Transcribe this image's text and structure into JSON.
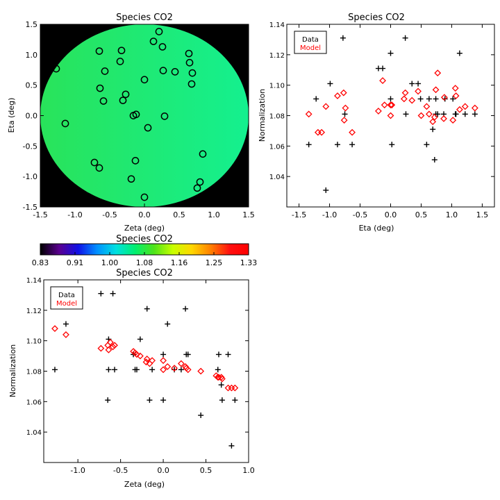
{
  "chart_data": [
    {
      "id": "map",
      "type": "heatmap",
      "title": "Species CO2",
      "xlabel": "Zeta (deg)",
      "ylabel": "Eta (deg)",
      "xlim": [
        -1.5,
        1.5
      ],
      "ylim": [
        -1.5,
        1.5
      ],
      "xticks": [
        -1.5,
        -1.0,
        -0.5,
        0.0,
        0.5,
        1.0,
        1.5
      ],
      "yticks": [
        -1.5,
        -1.0,
        -0.5,
        0.0,
        0.5,
        1.0,
        1.5
      ],
      "background_color": "#000000",
      "disk_color_left": "#29e35a",
      "disk_color_right": "#14f08f",
      "marker": "open circle",
      "points": [
        {
          "zeta": -1.27,
          "eta": 0.77
        },
        {
          "zeta": -1.14,
          "eta": -0.13
        },
        {
          "zeta": -0.65,
          "eta": 1.06
        },
        {
          "zeta": -0.57,
          "eta": 0.73
        },
        {
          "zeta": -0.64,
          "eta": 0.45
        },
        {
          "zeta": -0.59,
          "eta": 0.24
        },
        {
          "zeta": -0.33,
          "eta": 1.07
        },
        {
          "zeta": -0.35,
          "eta": 0.89
        },
        {
          "zeta": -0.27,
          "eta": 0.35
        },
        {
          "zeta": -0.31,
          "eta": 0.25
        },
        {
          "zeta": -0.16,
          "eta": 0.0
        },
        {
          "zeta": -0.12,
          "eta": 0.02
        },
        {
          "zeta": -0.72,
          "eta": -0.77
        },
        {
          "zeta": -0.65,
          "eta": -0.86
        },
        {
          "zeta": -0.13,
          "eta": -0.74
        },
        {
          "zeta": -0.19,
          "eta": -1.04
        },
        {
          "zeta": 0.0,
          "eta": -1.34
        },
        {
          "zeta": 0.0,
          "eta": 0.59
        },
        {
          "zeta": 0.05,
          "eta": -0.2
        },
        {
          "zeta": 0.13,
          "eta": 1.22
        },
        {
          "zeta": 0.21,
          "eta": 1.38
        },
        {
          "zeta": 0.26,
          "eta": 1.13
        },
        {
          "zeta": 0.27,
          "eta": 0.74
        },
        {
          "zeta": 0.29,
          "eta": -0.01
        },
        {
          "zeta": 0.44,
          "eta": 0.72
        },
        {
          "zeta": 0.64,
          "eta": 1.02
        },
        {
          "zeta": 0.65,
          "eta": 0.87
        },
        {
          "zeta": 0.69,
          "eta": 0.7
        },
        {
          "zeta": 0.68,
          "eta": 0.52
        },
        {
          "zeta": 0.76,
          "eta": -1.19
        },
        {
          "zeta": 0.8,
          "eta": -1.09
        },
        {
          "zeta": 0.84,
          "eta": -0.63
        }
      ]
    },
    {
      "id": "colorbar",
      "type": "colorbar",
      "title": "Species CO2",
      "tick_labels": [
        "0.83",
        "0.91",
        "1.00",
        "1.08",
        "1.16",
        "1.25",
        "1.33"
      ],
      "vmin": 0.83,
      "vmax": 1.33,
      "colors": [
        "#000000",
        "#5a0090",
        "#1010e6",
        "#0090ff",
        "#00e0e0",
        "#00ef70",
        "#4ee31a",
        "#c8ff00",
        "#ffd700",
        "#ff8000",
        "#ff1010",
        "#ff0000"
      ]
    },
    {
      "id": "eta_plot",
      "type": "scatter",
      "title": "Species CO2",
      "xlabel": "Eta (deg)",
      "ylabel": "Normalization",
      "xlim": [
        -1.7,
        1.7
      ],
      "ylim": [
        1.02,
        1.14
      ],
      "xticks": [
        -1.5,
        -1.0,
        -0.5,
        0.0,
        0.5,
        1.0,
        1.5
      ],
      "xtick_labels": [
        "-1.5",
        "-1.0",
        "-0.5",
        "0.0",
        "0.5",
        "1.0",
        "1.5"
      ],
      "yticks": [
        1.04,
        1.06,
        1.08,
        1.1,
        1.12,
        1.14
      ],
      "ytick_labels": [
        "1.04",
        "1.06",
        "1.08",
        "1.10",
        "1.12",
        "1.14"
      ],
      "legend": {
        "position": "top-left",
        "entries": [
          {
            "label": "Data",
            "color": "#000000"
          },
          {
            "label": "Model",
            "color": "#ff0000"
          }
        ]
      },
      "series": [
        {
          "name": "Data",
          "color": "#000000",
          "marker": "plus",
          "x": [
            -1.34,
            -1.22,
            -1.06,
            -0.99,
            -0.87,
            -0.78,
            -0.75,
            -0.63,
            -0.2,
            -0.13,
            0.0,
            0.0,
            0.02,
            0.24,
            0.25,
            0.35,
            0.45,
            0.49,
            0.59,
            0.63,
            0.69,
            0.72,
            0.74,
            0.74,
            0.77,
            0.87,
            0.89,
            1.02,
            1.06,
            1.07,
            1.13,
            1.22,
            1.38
          ],
          "y": [
            1.061,
            1.091,
            1.031,
            1.101,
            1.061,
            1.131,
            1.081,
            1.061,
            1.111,
            1.111,
            1.091,
            1.121,
            1.061,
            1.131,
            1.081,
            1.101,
            1.101,
            1.091,
            1.061,
            1.091,
            1.071,
            1.051,
            1.091,
            1.081,
            1.081,
            1.081,
            1.091,
            1.091,
            1.081,
            1.081,
            1.121,
            1.081,
            1.081
          ]
        },
        {
          "name": "Model",
          "color": "#ff0000",
          "marker": "diamond",
          "x": [
            -1.34,
            -1.19,
            -1.13,
            -1.06,
            -0.87,
            -0.77,
            -0.76,
            -0.74,
            -0.63,
            -0.2,
            -0.13,
            -0.1,
            0.0,
            0.0,
            0.02,
            0.22,
            0.24,
            0.35,
            0.45,
            0.5,
            0.59,
            0.63,
            0.69,
            0.72,
            0.74,
            0.77,
            0.87,
            0.88,
            1.02,
            1.06,
            1.07,
            1.13,
            1.22,
            1.38
          ],
          "y": [
            1.081,
            1.069,
            1.069,
            1.086,
            1.093,
            1.095,
            1.077,
            1.085,
            1.069,
            1.083,
            1.103,
            1.087,
            1.087,
            1.08,
            1.087,
            1.091,
            1.095,
            1.09,
            1.096,
            1.08,
            1.086,
            1.081,
            1.076,
            1.079,
            1.097,
            1.108,
            1.078,
            1.092,
            1.077,
            1.098,
            1.093,
            1.084,
            1.086,
            1.085
          ]
        }
      ]
    },
    {
      "id": "zeta_plot",
      "type": "scatter",
      "title": "Species CO2",
      "xlabel": "Zeta (deg)",
      "ylabel": "Normalization",
      "xlim": [
        -1.4,
        1.0
      ],
      "ylim": [
        1.02,
        1.14
      ],
      "xticks": [
        -1.0,
        -0.5,
        0.0,
        0.5,
        1.0
      ],
      "xtick_labels": [
        "-1.0",
        "-0.5",
        "0.0",
        "0.5",
        "1.0"
      ],
      "yticks": [
        1.04,
        1.06,
        1.08,
        1.1,
        1.12,
        1.14
      ],
      "ytick_labels": [
        "1.04",
        "1.06",
        "1.08",
        "1.10",
        "1.12",
        "1.14"
      ],
      "legend": {
        "position": "top-left",
        "entries": [
          {
            "label": "Data",
            "color": "#000000"
          },
          {
            "label": "Model",
            "color": "#ff0000"
          }
        ]
      },
      "series": [
        {
          "name": "Data",
          "color": "#000000",
          "marker": "plus",
          "x": [
            -1.27,
            -1.14,
            -0.73,
            -0.65,
            -0.64,
            -0.64,
            -0.59,
            -0.57,
            -0.35,
            -0.33,
            -0.31,
            -0.27,
            -0.19,
            -0.16,
            -0.13,
            0.0,
            0.0,
            0.05,
            0.13,
            0.21,
            0.26,
            0.27,
            0.29,
            0.44,
            0.64,
            0.65,
            0.68,
            0.69,
            0.76,
            0.8,
            0.84
          ],
          "y": [
            1.081,
            1.111,
            1.131,
            1.061,
            1.101,
            1.081,
            1.131,
            1.081,
            1.091,
            1.081,
            1.081,
            1.101,
            1.121,
            1.061,
            1.081,
            1.091,
            1.061,
            1.111,
            1.081,
            1.081,
            1.121,
            1.091,
            1.091,
            1.051,
            1.081,
            1.091,
            1.071,
            1.061,
            1.091,
            1.031,
            1.061
          ]
        },
        {
          "name": "Model",
          "color": "#ff0000",
          "marker": "diamond",
          "x": [
            -1.27,
            -1.14,
            -0.73,
            -0.65,
            -0.64,
            -0.62,
            -0.59,
            -0.57,
            -0.35,
            -0.33,
            -0.31,
            -0.27,
            -0.2,
            -0.19,
            -0.16,
            -0.13,
            0.0,
            0.0,
            0.05,
            0.13,
            0.21,
            0.26,
            0.27,
            0.29,
            0.44,
            0.62,
            0.64,
            0.65,
            0.68,
            0.69,
            0.76,
            0.8,
            0.84
          ],
          "y": [
            1.108,
            1.104,
            1.095,
            1.097,
            1.094,
            1.099,
            1.096,
            1.097,
            1.093,
            1.092,
            1.091,
            1.09,
            1.086,
            1.088,
            1.085,
            1.087,
            1.087,
            1.081,
            1.083,
            1.082,
            1.085,
            1.083,
            1.082,
            1.081,
            1.08,
            1.077,
            1.076,
            1.076,
            1.076,
            1.075,
            1.069,
            1.069,
            1.069
          ]
        }
      ]
    }
  ]
}
